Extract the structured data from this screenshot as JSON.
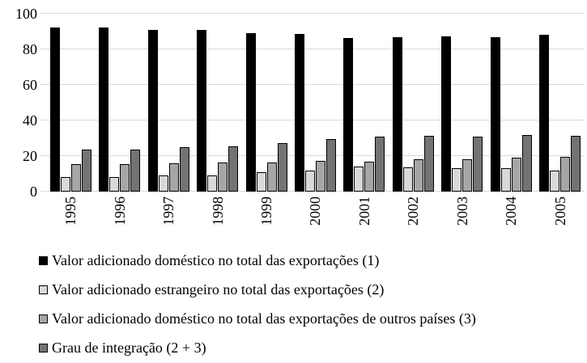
{
  "chart_data": {
    "type": "bar",
    "title": "",
    "xlabel": "",
    "ylabel": "",
    "ylim": [
      0,
      100
    ],
    "yticks": [
      0,
      20,
      40,
      60,
      80,
      100
    ],
    "grid": true,
    "legend_position": "bottom",
    "categories": [
      "1995",
      "1996",
      "1997",
      "1998",
      "1999",
      "2000",
      "2001",
      "2002",
      "2003",
      "2004",
      "2005"
    ],
    "series": [
      {
        "name": "Valor adicionado doméstico no total das exportações (1)",
        "color": "#000000",
        "values": [
          92.5,
          92.5,
          91,
          91,
          89,
          88.5,
          86.5,
          87,
          87.5,
          87,
          88
        ]
      },
      {
        "name": "Valor adicionado estrangeiro no total das exportações (2)",
        "color": "#d9d9d9",
        "values": [
          8,
          8,
          9,
          9,
          11,
          12,
          14,
          13.5,
          13,
          13,
          12
        ]
      },
      {
        "name": "Valor adicionado doméstico no total das exportações de outros países (3)",
        "color": "#a6a6a6",
        "values": [
          15.5,
          15.5,
          16,
          16.5,
          16.5,
          17.5,
          17,
          18,
          18,
          19,
          19.5
        ]
      },
      {
        "name": "Grau de integração (2 + 3)",
        "color": "#737373",
        "values": [
          23.5,
          23.5,
          25,
          25.5,
          27.5,
          29.5,
          31,
          31.5,
          31,
          32,
          31.5
        ]
      }
    ]
  },
  "colors": {
    "gridline": "#d9d9d9",
    "background": "#ffffff",
    "text": "#000000"
  }
}
